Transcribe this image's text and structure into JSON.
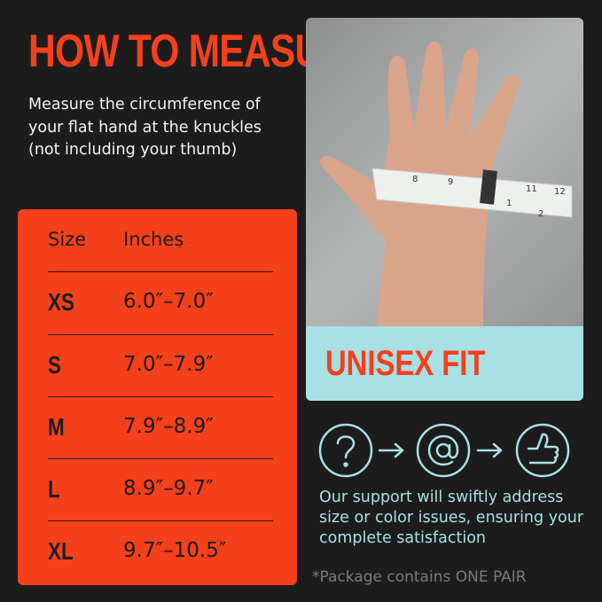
{
  "title": "HOW TO MEASURE?",
  "intro": "Measure the circumference of your flat hand at the knuckles (not including your thumb)",
  "table": {
    "headers": [
      "Size",
      "Inches"
    ],
    "rows": [
      {
        "size": "XS",
        "inches": "6.0″–7.0″"
      },
      {
        "size": "S",
        "inches": "7.0″–7.9″"
      },
      {
        "size": "M",
        "inches": "7.9″–8.9″"
      },
      {
        "size": "L",
        "inches": "8.9″–9.7″"
      },
      {
        "size": "XL",
        "inches": "9.7″–10.5″"
      }
    ]
  },
  "photo": {
    "band_label": "UNISEX FIT",
    "tape_numbers": [
      "8",
      "9",
      "11",
      "12",
      "1",
      "2"
    ]
  },
  "icons": [
    "question-icon",
    "arrow-right-icon",
    "at-sign-icon",
    "arrow-right-icon",
    "thumbs-up-icon"
  ],
  "support_text": "Our support will swiftly address size or color issues, ensuring your complete satisfaction",
  "note": "*Package contains ONE PAIR",
  "colors": {
    "background": "#1c1c1c",
    "accent": "#f5401c",
    "cyan": "#a8e0e4"
  }
}
